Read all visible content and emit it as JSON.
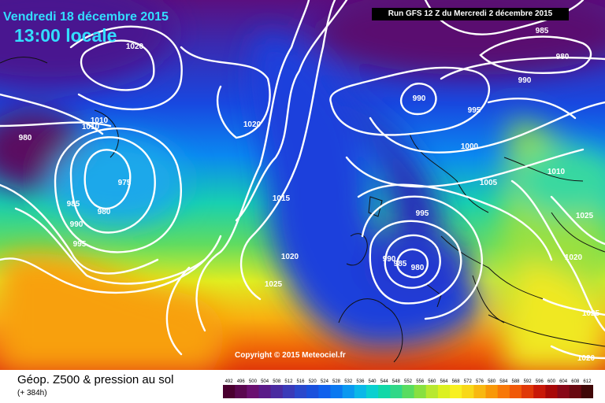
{
  "header": {
    "date": "Vendredi 18 décembre 2015",
    "time": "13:00 locale",
    "run": "Run GFS 12 Z du Mercredi 2 décembre 2015"
  },
  "copyright": "Copyright © 2015 Meteociel.fr",
  "legend": {
    "title": "Géop. Z500 & pression au sol",
    "subtitle": "(+ 384h)",
    "scale_values": [
      "492",
      "496",
      "500",
      "504",
      "508",
      "512",
      "516",
      "520",
      "524",
      "528",
      "532",
      "536",
      "540",
      "544",
      "548",
      "552",
      "556",
      "560",
      "564",
      "568",
      "572",
      "576",
      "580",
      "584",
      "588",
      "592",
      "596",
      "600",
      "604",
      "608",
      "612"
    ],
    "scale_colors": [
      "#4a0030",
      "#5a0850",
      "#6a1070",
      "#5a1a88",
      "#4a2aa0",
      "#3a3ab8",
      "#2a48cc",
      "#1a50dc",
      "#1060ec",
      "#0a78f0",
      "#0a98f0",
      "#0ab8e8",
      "#0ad0d0",
      "#10d8a8",
      "#30d888",
      "#58dc60",
      "#88e040",
      "#b8e830",
      "#dcf020",
      "#f8f020",
      "#f8d818",
      "#f8b810",
      "#f89808",
      "#f87808",
      "#f05808",
      "#e03808",
      "#c81808",
      "#a80808",
      "#880818",
      "#680810",
      "#400808"
    ]
  },
  "pressure_labels": [
    {
      "text": "985"
    },
    {
      "text": "980"
    },
    {
      "text": "990"
    },
    {
      "text": "995"
    },
    {
      "text": "990"
    },
    {
      "text": "1000"
    },
    {
      "text": "1005"
    },
    {
      "text": "1010"
    },
    {
      "text": "1025"
    },
    {
      "text": "1020"
    },
    {
      "text": "1025"
    },
    {
      "text": "1020"
    },
    {
      "text": "1020"
    },
    {
      "text": "1020"
    },
    {
      "text": "1010"
    },
    {
      "text": "1010"
    },
    {
      "text": "980"
    },
    {
      "text": "975"
    },
    {
      "text": "985"
    },
    {
      "text": "980"
    },
    {
      "text": "990"
    },
    {
      "text": "995"
    },
    {
      "text": "1015"
    },
    {
      "text": "1020"
    },
    {
      "text": "1025"
    },
    {
      "text": "995"
    },
    {
      "text": "990"
    },
    {
      "text": "985"
    },
    {
      "text": "980"
    }
  ]
}
